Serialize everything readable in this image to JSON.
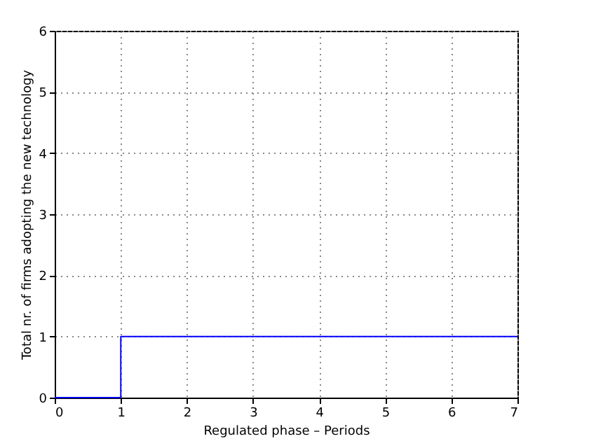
{
  "chart_data": {
    "type": "step",
    "xlabel": "Regulated phase – Periods",
    "ylabel": "Total nr. of firms adopting the new technology",
    "x": [
      0,
      1,
      7
    ],
    "series": [
      {
        "color": "#0000ff",
        "values": [
          0,
          1,
          1
        ]
      }
    ],
    "xlim": [
      0,
      7
    ],
    "xticks": [
      0,
      1,
      2,
      3,
      4,
      5,
      6,
      7
    ],
    "ylim": [
      0,
      6
    ],
    "yticks": [
      0,
      1,
      2,
      3,
      4,
      5,
      6
    ],
    "grid": true,
    "line_style": "solid"
  }
}
